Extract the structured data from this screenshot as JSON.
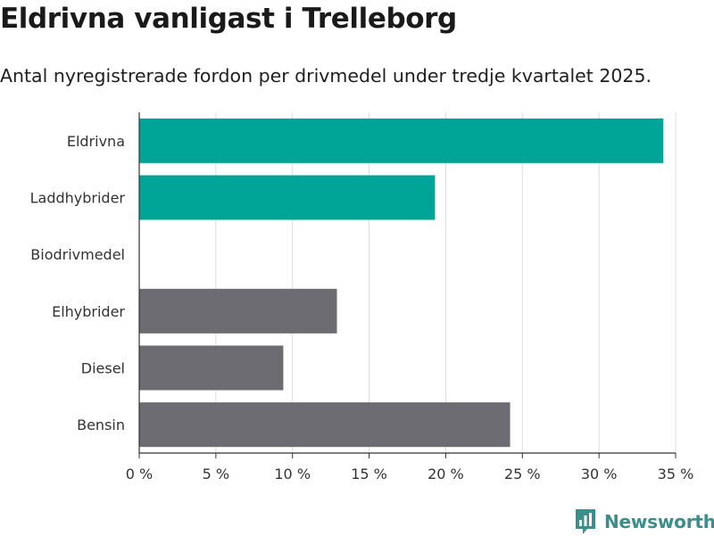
{
  "header": {
    "title": "Eldrivna vanligast i Trelleborg",
    "subtitle": "Antal nyregistrerade fordon per drivmedel under tredje kvartalet 2025."
  },
  "brand": {
    "logo_text": "Newsworthy",
    "icon": "newsworthy-chart-icon",
    "color": "#3a8f8a"
  },
  "colors": {
    "highlight": "#00a597",
    "default": "#6d6c72",
    "grid": "#dcdcdc",
    "axis": "#333333"
  },
  "chart_data": {
    "type": "bar",
    "orientation": "horizontal",
    "title": "Eldrivna vanligast i Trelleborg",
    "subtitle": "Antal nyregistrerade fordon per drivmedel under tredje kvartalet 2025.",
    "categories": [
      "Eldrivna",
      "Laddhybrider",
      "Biodrivmedel",
      "Elhybrider",
      "Diesel",
      "Bensin"
    ],
    "values": [
      34.2,
      19.3,
      0,
      12.9,
      9.4,
      24.2
    ],
    "highlighted": [
      true,
      true,
      false,
      false,
      false,
      false
    ],
    "xlim": [
      0,
      35
    ],
    "xticks": [
      0,
      5,
      10,
      15,
      20,
      25,
      30,
      35
    ],
    "xtick_labels": [
      "0 %",
      "5 %",
      "10 %",
      "15 %",
      "20 %",
      "25 %",
      "30 %",
      "35 %"
    ],
    "xlabel": "",
    "ylabel": "",
    "grid": true,
    "legend": "none"
  }
}
